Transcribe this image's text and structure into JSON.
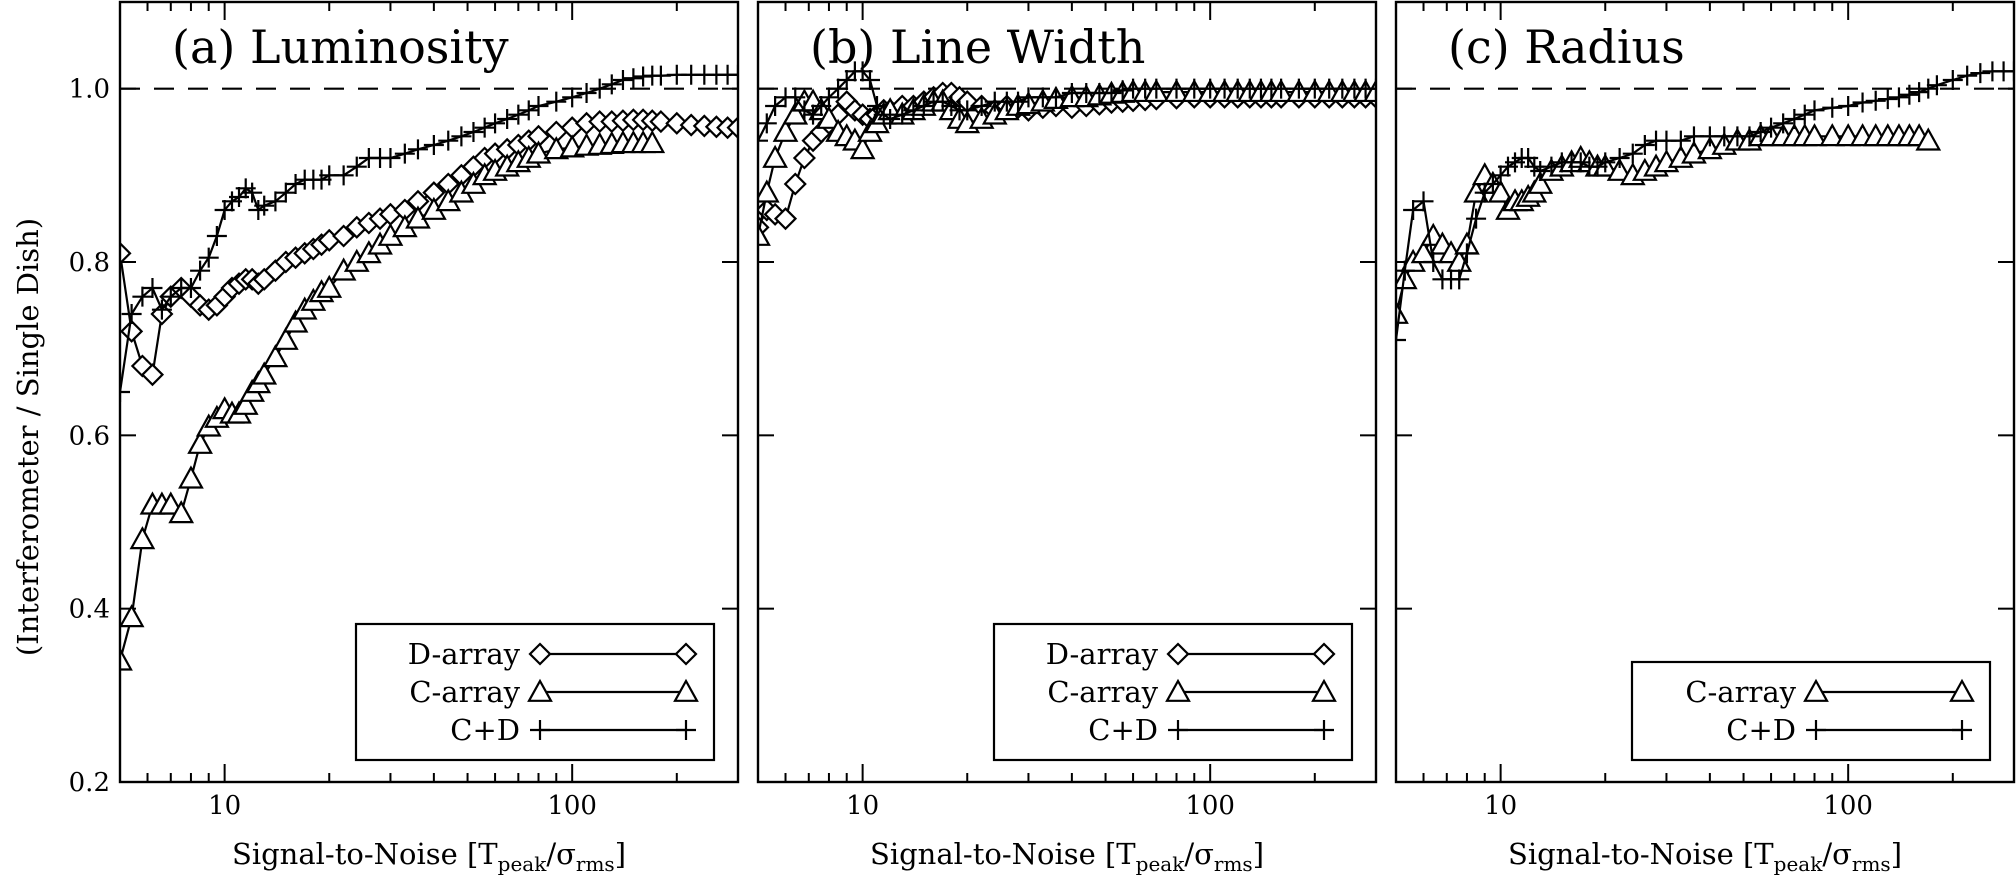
{
  "figure": {
    "ylabel": "(Interferometer / Single Dish)"
  },
  "chart_data": [
    {
      "type": "line",
      "title": "(a) Luminosity",
      "xlabel": {
        "main": "Signal-to-Noise [T",
        "sub1": "peak",
        "mid": "/σ",
        "sub2": "rms",
        "end": "]"
      },
      "xscale": "log",
      "xlim": [
        5,
        300
      ],
      "ylim": [
        0.2,
        1.1
      ],
      "xticks": [
        10,
        100
      ],
      "xtick_labels": [
        "10",
        "100"
      ],
      "yticks": [
        0.2,
        0.4,
        0.6,
        0.8,
        1.0
      ],
      "ytick_labels": [
        "0.2",
        "0.4",
        "0.6",
        "0.8",
        "1.0"
      ],
      "reference_line": 1.0,
      "legend": "bottom-right",
      "series": [
        {
          "name": "D-array",
          "marker": "diamond",
          "x": [
            5.0,
            5.4,
            5.8,
            6.2,
            6.6,
            7.0,
            7.5,
            8.0,
            8.5,
            9.0,
            9.5,
            10,
            10.5,
            11,
            11.5,
            12,
            12.5,
            13,
            14,
            15,
            16,
            17,
            18,
            19,
            20,
            22,
            24,
            26,
            28,
            30,
            33,
            36,
            40,
            44,
            48,
            52,
            56,
            60,
            65,
            70,
            75,
            80,
            90,
            100,
            110,
            120,
            130,
            140,
            150,
            160,
            170,
            180,
            200,
            220,
            240,
            260,
            280,
            300
          ],
          "values": [
            0.81,
            0.72,
            0.68,
            0.67,
            0.74,
            0.76,
            0.77,
            0.76,
            0.75,
            0.745,
            0.75,
            0.76,
            0.77,
            0.775,
            0.78,
            0.78,
            0.775,
            0.78,
            0.79,
            0.8,
            0.805,
            0.81,
            0.815,
            0.82,
            0.825,
            0.83,
            0.84,
            0.845,
            0.85,
            0.855,
            0.86,
            0.87,
            0.88,
            0.89,
            0.9,
            0.91,
            0.92,
            0.925,
            0.93,
            0.935,
            0.94,
            0.945,
            0.95,
            0.955,
            0.96,
            0.962,
            0.962,
            0.963,
            0.964,
            0.964,
            0.963,
            0.962,
            0.96,
            0.958,
            0.957,
            0.956,
            0.955,
            0.955
          ]
        },
        {
          "name": "C-array",
          "marker": "triangle",
          "x": [
            5.0,
            5.4,
            5.8,
            6.2,
            6.6,
            7.0,
            7.5,
            8.0,
            8.5,
            9.0,
            9.5,
            10,
            10.5,
            11,
            11.5,
            12,
            12.5,
            13,
            14,
            15,
            16,
            17,
            18,
            19,
            20,
            22,
            24,
            26,
            28,
            30,
            33,
            36,
            40,
            44,
            48,
            52,
            56,
            60,
            65,
            70,
            75,
            80,
            90,
            100,
            110,
            120,
            130,
            140,
            150,
            160,
            170
          ],
          "values": [
            0.34,
            0.39,
            0.48,
            0.52,
            0.52,
            0.52,
            0.51,
            0.55,
            0.59,
            0.61,
            0.62,
            0.63,
            0.625,
            0.625,
            0.635,
            0.65,
            0.66,
            0.67,
            0.69,
            0.71,
            0.73,
            0.745,
            0.755,
            0.765,
            0.77,
            0.79,
            0.8,
            0.81,
            0.82,
            0.83,
            0.84,
            0.85,
            0.86,
            0.87,
            0.88,
            0.89,
            0.9,
            0.905,
            0.91,
            0.915,
            0.92,
            0.925,
            0.93,
            0.932,
            0.934,
            0.935,
            0.936,
            0.937,
            0.937,
            0.937,
            0.937
          ]
        },
        {
          "name": "C+D",
          "marker": "plus",
          "x": [
            5.0,
            5.4,
            5.8,
            6.2,
            6.6,
            7.0,
            7.5,
            8.0,
            8.5,
            9.0,
            9.5,
            10,
            10.5,
            11,
            11.5,
            12,
            12.5,
            13,
            14,
            15,
            16,
            17,
            18,
            19,
            20,
            22,
            24,
            26,
            28,
            30,
            33,
            36,
            40,
            44,
            48,
            52,
            56,
            60,
            65,
            70,
            75,
            80,
            90,
            100,
            110,
            120,
            130,
            140,
            150,
            160,
            170,
            180,
            200,
            220,
            240,
            260,
            280,
            300
          ],
          "values": [
            0.65,
            0.74,
            0.76,
            0.77,
            0.745,
            0.76,
            0.77,
            0.77,
            0.79,
            0.805,
            0.83,
            0.86,
            0.87,
            0.875,
            0.885,
            0.88,
            0.86,
            0.865,
            0.87,
            0.88,
            0.89,
            0.895,
            0.895,
            0.895,
            0.9,
            0.9,
            0.91,
            0.92,
            0.92,
            0.92,
            0.925,
            0.93,
            0.935,
            0.94,
            0.945,
            0.95,
            0.955,
            0.96,
            0.965,
            0.97,
            0.975,
            0.98,
            0.985,
            0.99,
            0.995,
            1.0,
            1.005,
            1.01,
            1.012,
            1.014,
            1.015,
            1.015,
            1.016,
            1.016,
            1.016,
            1.016,
            1.016,
            1.016
          ]
        }
      ]
    },
    {
      "type": "line",
      "title": "(b) Line Width",
      "xlabel": {
        "main": "Signal-to-Noise [T",
        "sub1": "peak",
        "mid": "/σ",
        "sub2": "rms",
        "end": "]"
      },
      "xscale": "log",
      "xlim": [
        5,
        300
      ],
      "ylim": [
        0.2,
        1.1
      ],
      "xticks": [
        10,
        100
      ],
      "xtick_labels": [
        "10",
        "100"
      ],
      "yticks": [
        0.2,
        0.4,
        0.6,
        0.8,
        1.0
      ],
      "ytick_labels": [
        "0.2",
        "0.4",
        "0.6",
        "0.8",
        "1.0"
      ],
      "reference_line": 1.0,
      "legend": "bottom-right",
      "series": [
        {
          "name": "D-array",
          "marker": "diamond",
          "x": [
            5.0,
            5.3,
            5.6,
            6.0,
            6.4,
            6.8,
            7.2,
            7.6,
            8.0,
            8.5,
            9.0,
            9.5,
            10,
            10.5,
            11,
            11.5,
            12,
            13,
            14,
            15,
            16,
            17,
            18,
            19,
            20,
            22,
            24,
            26,
            28,
            30,
            33,
            36,
            40,
            44,
            48,
            52,
            56,
            60,
            65,
            70,
            80,
            90,
            100,
            110,
            120,
            130,
            140,
            150,
            160,
            180,
            200,
            220,
            240,
            260,
            280,
            300
          ],
          "values": [
            0.84,
            0.86,
            0.855,
            0.85,
            0.89,
            0.92,
            0.94,
            0.95,
            0.96,
            0.97,
            0.985,
            0.975,
            0.97,
            0.965,
            0.97,
            0.975,
            0.975,
            0.98,
            0.98,
            0.985,
            0.99,
            0.995,
            0.995,
            0.99,
            0.985,
            0.98,
            0.975,
            0.98,
            0.978,
            0.975,
            0.978,
            0.98,
            0.978,
            0.98,
            0.982,
            0.984,
            0.985,
            0.986,
            0.987,
            0.988,
            0.989,
            0.99,
            0.99,
            0.99,
            0.99,
            0.99,
            0.99,
            0.99,
            0.99,
            0.99,
            0.99,
            0.99,
            0.99,
            0.99,
            0.99,
            0.99
          ]
        },
        {
          "name": "C-array",
          "marker": "triangle",
          "x": [
            5.0,
            5.3,
            5.6,
            6.0,
            6.4,
            6.8,
            7.2,
            7.6,
            8.0,
            8.5,
            9.0,
            9.5,
            10,
            10.5,
            11,
            11.5,
            12,
            13,
            14,
            15,
            16,
            17,
            18,
            19,
            20,
            22,
            24,
            26,
            28,
            30,
            33,
            36,
            40,
            44,
            48,
            52,
            56,
            60,
            65,
            70,
            80,
            90,
            100,
            110,
            120,
            130,
            140,
            150,
            160,
            180,
            200,
            220,
            240,
            260,
            280,
            300
          ],
          "values": [
            0.83,
            0.88,
            0.92,
            0.95,
            0.97,
            0.985,
            0.985,
            0.975,
            0.965,
            0.95,
            0.945,
            0.94,
            0.93,
            0.95,
            0.96,
            0.97,
            0.975,
            0.97,
            0.975,
            0.98,
            0.985,
            0.985,
            0.975,
            0.965,
            0.96,
            0.965,
            0.97,
            0.975,
            0.98,
            0.982,
            0.985,
            0.988,
            0.99,
            0.99,
            0.992,
            0.994,
            0.995,
            0.996,
            0.996,
            0.996,
            0.996,
            0.996,
            0.996,
            0.996,
            0.996,
            0.996,
            0.996,
            0.996,
            0.996,
            0.996,
            0.996,
            0.996,
            0.996,
            0.996,
            0.996,
            0.996
          ]
        },
        {
          "name": "C+D",
          "marker": "plus",
          "x": [
            5.0,
            5.3,
            5.6,
            6.0,
            6.4,
            6.8,
            7.2,
            7.6,
            8.0,
            8.5,
            9.0,
            9.5,
            10,
            10.5,
            11,
            11.5,
            12,
            13,
            14,
            15,
            16,
            17,
            18,
            19,
            20,
            22,
            24,
            26,
            28,
            30,
            33,
            36,
            40,
            44,
            48,
            52,
            56,
            60,
            65,
            70,
            80,
            90,
            100,
            110,
            120,
            130,
            140,
            150,
            160,
            180,
            200,
            220,
            240,
            260,
            280,
            300
          ],
          "values": [
            0.94,
            0.96,
            0.98,
            0.99,
            0.99,
            0.975,
            0.97,
            0.98,
            0.99,
            1.0,
            1.01,
            1.02,
            1.02,
            1.01,
            0.98,
            0.97,
            0.965,
            0.97,
            0.975,
            0.98,
            0.985,
            0.985,
            0.98,
            0.975,
            0.975,
            0.98,
            0.985,
            0.985,
            0.985,
            0.99,
            0.99,
            0.99,
            0.995,
            0.995,
            0.995,
            0.995,
            0.998,
            1.0,
            1.0,
            1.0,
            1.0,
            1.0,
            1.0,
            1.0,
            1.0,
            1.0,
            1.0,
            1.0,
            1.0,
            1.0,
            1.0,
            1.0,
            1.0,
            1.0,
            1.0,
            1.0
          ]
        }
      ]
    },
    {
      "type": "line",
      "title": "(c) Radius",
      "xlabel": {
        "main": "Signal-to-Noise [T",
        "sub1": "peak",
        "mid": "/σ",
        "sub2": "rms",
        "end": "]"
      },
      "xscale": "log",
      "xlim": [
        5,
        300
      ],
      "ylim": [
        0.2,
        1.1
      ],
      "xticks": [
        10,
        100
      ],
      "xtick_labels": [
        "10",
        "100"
      ],
      "yticks": [
        0.2,
        0.4,
        0.6,
        0.8,
        1.0
      ],
      "ytick_labels": [
        "0.2",
        "0.4",
        "0.6",
        "0.8",
        "1.0"
      ],
      "reference_line": 1.0,
      "legend": "bottom-right",
      "series": [
        {
          "name": "C-array",
          "marker": "triangle",
          "x": [
            5.0,
            5.3,
            5.6,
            6.0,
            6.4,
            6.8,
            7.2,
            7.6,
            8.0,
            8.5,
            9.0,
            9.5,
            10,
            10.5,
            11,
            11.5,
            12,
            12.5,
            13,
            14,
            15,
            16,
            17,
            18,
            19,
            20,
            22,
            24,
            26,
            28,
            30,
            33,
            36,
            40,
            44,
            48,
            52,
            56,
            60,
            65,
            70,
            75,
            80,
            90,
            100,
            110,
            120,
            130,
            140,
            150,
            160,
            170
          ],
          "values": [
            0.74,
            0.78,
            0.8,
            0.81,
            0.83,
            0.82,
            0.81,
            0.8,
            0.82,
            0.88,
            0.9,
            0.89,
            0.88,
            0.86,
            0.87,
            0.87,
            0.875,
            0.88,
            0.89,
            0.905,
            0.91,
            0.915,
            0.92,
            0.915,
            0.91,
            0.91,
            0.905,
            0.9,
            0.905,
            0.91,
            0.915,
            0.92,
            0.925,
            0.93,
            0.935,
            0.94,
            0.94,
            0.945,
            0.945,
            0.945,
            0.945,
            0.945,
            0.945,
            0.945,
            0.945,
            0.945,
            0.945,
            0.945,
            0.945,
            0.945,
            0.945,
            0.94
          ]
        },
        {
          "name": "C+D",
          "marker": "plus",
          "x": [
            5.0,
            5.3,
            5.6,
            6.0,
            6.4,
            6.8,
            7.2,
            7.6,
            8.0,
            8.5,
            9.0,
            9.5,
            10,
            10.5,
            11,
            11.5,
            12,
            12.5,
            13,
            14,
            15,
            16,
            17,
            18,
            19,
            20,
            22,
            24,
            26,
            28,
            30,
            33,
            36,
            40,
            44,
            48,
            52,
            56,
            60,
            65,
            70,
            75,
            80,
            90,
            100,
            110,
            120,
            130,
            140,
            150,
            160,
            170,
            180,
            200,
            220,
            240,
            260,
            280,
            300
          ],
          "values": [
            0.71,
            0.79,
            0.86,
            0.87,
            0.8,
            0.78,
            0.78,
            0.78,
            0.81,
            0.85,
            0.88,
            0.89,
            0.9,
            0.91,
            0.915,
            0.92,
            0.92,
            0.91,
            0.905,
            0.91,
            0.915,
            0.915,
            0.915,
            0.91,
            0.91,
            0.915,
            0.92,
            0.925,
            0.935,
            0.94,
            0.94,
            0.94,
            0.945,
            0.945,
            0.945,
            0.945,
            0.945,
            0.95,
            0.955,
            0.96,
            0.965,
            0.97,
            0.975,
            0.978,
            0.98,
            0.984,
            0.986,
            0.988,
            0.99,
            0.993,
            0.996,
            1.0,
            1.004,
            1.01,
            1.015,
            1.018,
            1.02,
            1.02,
            1.02
          ]
        }
      ]
    }
  ]
}
